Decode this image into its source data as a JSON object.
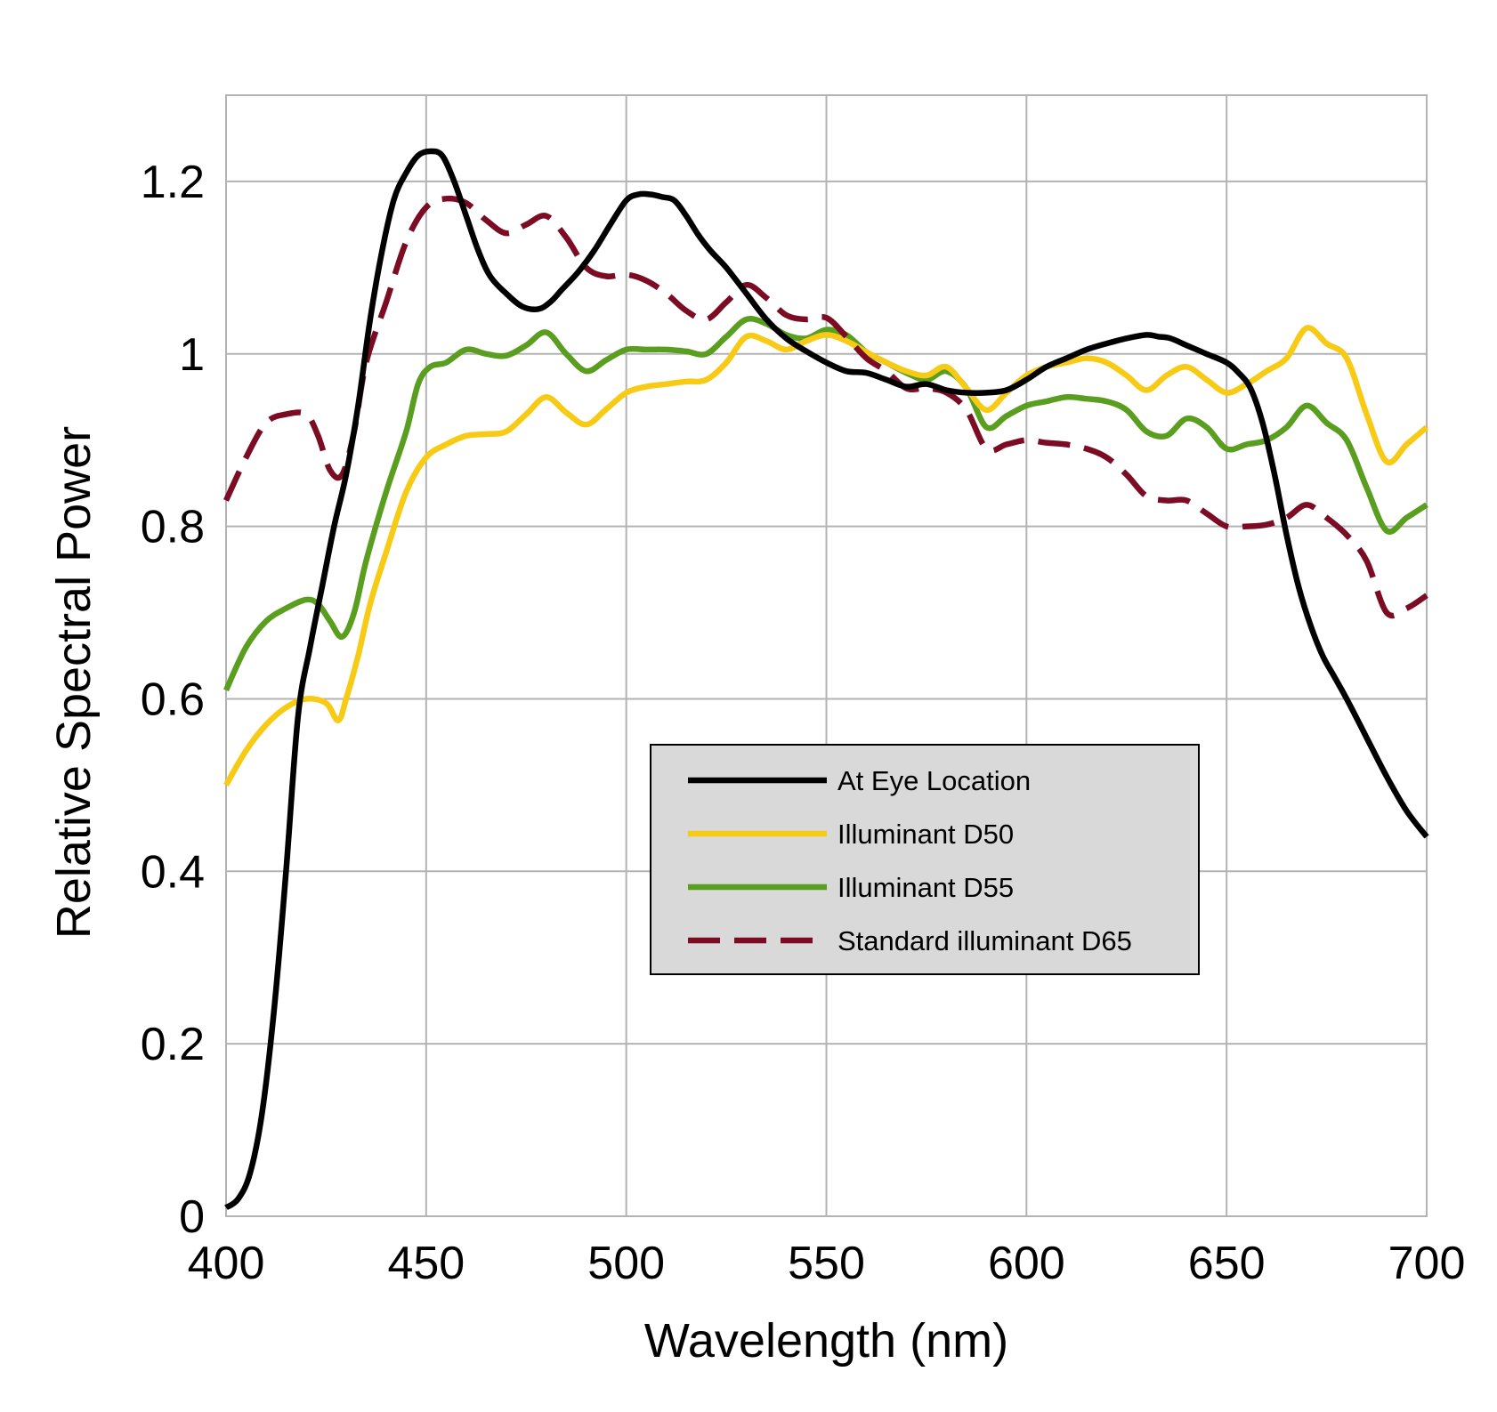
{
  "chart_data": {
    "type": "line",
    "title": "",
    "xlabel": "Wavelength (nm)",
    "ylabel": "Relative Spectral Power",
    "xlim": [
      400,
      700
    ],
    "ylim": [
      0,
      1.3
    ],
    "x_ticks": [
      400,
      450,
      500,
      550,
      600,
      650,
      700
    ],
    "x_tick_labels": [
      "400",
      "450",
      "500",
      "550",
      "600",
      "650",
      "700"
    ],
    "y_ticks": [
      0,
      0.2,
      0.4,
      0.6,
      0.8,
      1.0,
      1.2
    ],
    "y_tick_labels": [
      "0",
      "0.2",
      "0.4",
      "0.6",
      "0.8",
      "1",
      "1.2"
    ],
    "grid": true,
    "legend_position": "center-right",
    "series": [
      {
        "name": "At Eye Location",
        "color": "#000000",
        "dash": "solid",
        "x": [
          400,
          403,
          406,
          409,
          412,
          415,
          418,
          421,
          424,
          427,
          430,
          433,
          436,
          439,
          442,
          445,
          448,
          451,
          454,
          457,
          460,
          463,
          466,
          470,
          474,
          478,
          481,
          484,
          488,
          492,
          496,
          500,
          503,
          506,
          509,
          512,
          515,
          518,
          521,
          525,
          530,
          535,
          540,
          545,
          550,
          555,
          560,
          565,
          570,
          575,
          580,
          585,
          590,
          595,
          600,
          605,
          610,
          615,
          620,
          625,
          630,
          633,
          636,
          640,
          645,
          650,
          653,
          656,
          659,
          662,
          665,
          668,
          671,
          674,
          677,
          680,
          685,
          690,
          695,
          700
        ],
        "values": [
          0.01,
          0.02,
          0.05,
          0.12,
          0.24,
          0.4,
          0.58,
          0.66,
          0.73,
          0.8,
          0.86,
          0.94,
          1.04,
          1.12,
          1.18,
          1.21,
          1.23,
          1.235,
          1.23,
          1.2,
          1.16,
          1.12,
          1.09,
          1.07,
          1.055,
          1.052,
          1.06,
          1.075,
          1.095,
          1.12,
          1.15,
          1.178,
          1.185,
          1.185,
          1.182,
          1.178,
          1.16,
          1.138,
          1.12,
          1.1,
          1.07,
          1.04,
          1.018,
          1.003,
          0.99,
          0.98,
          0.978,
          0.97,
          0.962,
          0.965,
          0.958,
          0.955,
          0.955,
          0.958,
          0.97,
          0.985,
          0.995,
          1.005,
          1.012,
          1.018,
          1.022,
          1.02,
          1.018,
          1.01,
          1.0,
          0.99,
          0.978,
          0.96,
          0.92,
          0.86,
          0.79,
          0.73,
          0.685,
          0.65,
          0.625,
          0.6,
          0.555,
          0.51,
          0.47,
          0.44
        ]
      },
      {
        "name": "Illuminant D50",
        "color": "#f7cb15",
        "dash": "solid",
        "x": [
          400,
          405,
          410,
          415,
          420,
          425,
          428,
          430,
          433,
          436,
          440,
          445,
          450,
          455,
          460,
          465,
          470,
          475,
          480,
          485,
          490,
          495,
          500,
          505,
          510,
          515,
          520,
          525,
          530,
          535,
          540,
          545,
          550,
          555,
          560,
          565,
          570,
          575,
          580,
          585,
          590,
          595,
          600,
          605,
          610,
          615,
          620,
          625,
          630,
          635,
          640,
          645,
          650,
          655,
          660,
          665,
          670,
          675,
          680,
          685,
          690,
          695,
          700
        ],
        "values": [
          0.5,
          0.54,
          0.57,
          0.59,
          0.6,
          0.595,
          0.575,
          0.6,
          0.65,
          0.71,
          0.77,
          0.84,
          0.88,
          0.895,
          0.905,
          0.907,
          0.91,
          0.93,
          0.95,
          0.932,
          0.918,
          0.936,
          0.955,
          0.962,
          0.965,
          0.968,
          0.97,
          0.99,
          1.02,
          1.015,
          1.005,
          1.015,
          1.022,
          1.015,
          1.002,
          0.99,
          0.98,
          0.975,
          0.985,
          0.96,
          0.935,
          0.955,
          0.975,
          0.985,
          0.99,
          0.995,
          0.99,
          0.975,
          0.958,
          0.975,
          0.985,
          0.97,
          0.955,
          0.965,
          0.98,
          0.995,
          1.03,
          1.012,
          0.995,
          0.93,
          0.875,
          0.895,
          0.915
        ]
      },
      {
        "name": "Illuminant D55",
        "color": "#5a9e1f",
        "dash": "solid",
        "x": [
          400,
          405,
          410,
          415,
          420,
          423,
          426,
          429,
          432,
          435,
          440,
          445,
          448,
          451,
          455,
          460,
          465,
          470,
          475,
          480,
          485,
          490,
          495,
          500,
          505,
          510,
          515,
          520,
          525,
          530,
          535,
          540,
          545,
          550,
          555,
          560,
          565,
          570,
          575,
          580,
          585,
          590,
          595,
          600,
          605,
          610,
          615,
          620,
          625,
          630,
          635,
          640,
          645,
          650,
          655,
          660,
          665,
          670,
          675,
          680,
          685,
          690,
          695,
          700
        ],
        "values": [
          0.61,
          0.66,
          0.69,
          0.705,
          0.715,
          0.71,
          0.69,
          0.672,
          0.7,
          0.76,
          0.84,
          0.91,
          0.965,
          0.985,
          0.99,
          1.005,
          1.0,
          0.998,
          1.01,
          1.025,
          1.0,
          0.98,
          0.993,
          1.005,
          1.005,
          1.005,
          1.003,
          1.0,
          1.02,
          1.04,
          1.035,
          1.022,
          1.018,
          1.028,
          1.022,
          1.002,
          0.99,
          0.978,
          0.97,
          0.98,
          0.96,
          0.915,
          0.928,
          0.94,
          0.945,
          0.95,
          0.948,
          0.945,
          0.935,
          0.91,
          0.905,
          0.925,
          0.915,
          0.89,
          0.895,
          0.9,
          0.915,
          0.94,
          0.92,
          0.9,
          0.845,
          0.795,
          0.81,
          0.825
        ]
      },
      {
        "name": "Standard illuminant D65",
        "color": "#7b0c24",
        "dash": "dashed",
        "x": [
          400,
          405,
          410,
          415,
          420,
          423,
          426,
          429,
          432,
          435,
          440,
          445,
          450,
          455,
          460,
          465,
          470,
          475,
          480,
          485,
          490,
          495,
          500,
          505,
          510,
          515,
          520,
          525,
          530,
          535,
          540,
          545,
          550,
          555,
          560,
          565,
          570,
          575,
          580,
          585,
          590,
          595,
          600,
          605,
          610,
          615,
          620,
          625,
          630,
          635,
          640,
          645,
          650,
          655,
          660,
          665,
          670,
          675,
          680,
          685,
          690,
          695,
          700
        ],
        "values": [
          0.83,
          0.88,
          0.92,
          0.93,
          0.93,
          0.905,
          0.865,
          0.86,
          0.91,
          0.99,
          1.06,
          1.13,
          1.17,
          1.18,
          1.175,
          1.155,
          1.14,
          1.15,
          1.16,
          1.135,
          1.1,
          1.09,
          1.092,
          1.085,
          1.07,
          1.05,
          1.04,
          1.06,
          1.08,
          1.065,
          1.045,
          1.04,
          1.042,
          1.02,
          0.995,
          0.98,
          0.96,
          0.96,
          0.955,
          0.935,
          0.89,
          0.895,
          0.9,
          0.897,
          0.895,
          0.89,
          0.88,
          0.86,
          0.835,
          0.83,
          0.83,
          0.815,
          0.8,
          0.8,
          0.802,
          0.81,
          0.825,
          0.81,
          0.79,
          0.76,
          0.7,
          0.705,
          0.72
        ]
      }
    ]
  }
}
